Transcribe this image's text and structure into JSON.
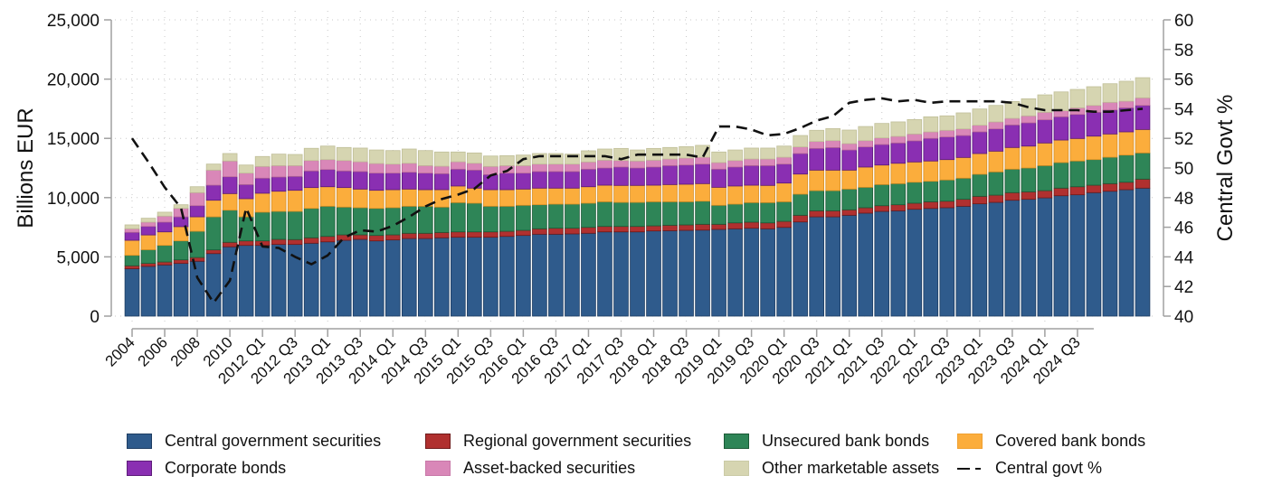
{
  "chart_data": {
    "type": "bar",
    "stacked": true,
    "title": "",
    "xlabel": "",
    "ylabel": "Billions EUR",
    "y2label": "Central Govt %",
    "ylim": [
      0,
      25000
    ],
    "y2lim": [
      40,
      60
    ],
    "yticks": [
      "0",
      "5,000",
      "10,000",
      "15,000",
      "20,000",
      "25,000"
    ],
    "y2ticks": [
      "40",
      "42",
      "44",
      "46",
      "48",
      "50",
      "52",
      "54",
      "56",
      "58",
      "60"
    ],
    "grid": true,
    "legend_position": "bottom",
    "x_tick_labels": [
      "2004",
      "2006",
      "2008",
      "2010",
      "2012 Q1",
      "2012 Q3",
      "2013 Q1",
      "2013 Q3",
      "2014 Q1",
      "2014 Q3",
      "2015 Q1",
      "2015 Q3",
      "2016 Q1",
      "2016 Q3",
      "2017 Q1",
      "2017 Q3",
      "2018 Q1",
      "2018 Q3",
      "2019 Q1",
      "2019 Q3",
      "2020 Q1",
      "2020 Q3",
      "2021 Q1",
      "2021 Q3",
      "2022 Q1",
      "2022 Q3",
      "2023 Q1",
      "2023 Q3",
      "2024 Q1",
      "2024 Q3"
    ],
    "categories": [
      "2004",
      "2005",
      "2006",
      "2007",
      "2008",
      "2009",
      "2010",
      "2011",
      "2012 Q1",
      "2012 Q2",
      "2012 Q3",
      "2012 Q4",
      "2013 Q1",
      "2013 Q2",
      "2013 Q3",
      "2013 Q4",
      "2014 Q1",
      "2014 Q2",
      "2014 Q3",
      "2014 Q4",
      "2015 Q1",
      "2015 Q2",
      "2015 Q3",
      "2015 Q4",
      "2016 Q1",
      "2016 Q2",
      "2016 Q3",
      "2016 Q4",
      "2017 Q1",
      "2017 Q2",
      "2017 Q3",
      "2017 Q4",
      "2018 Q1",
      "2018 Q2",
      "2018 Q3",
      "2018 Q4",
      "2019 Q1",
      "2019 Q2",
      "2019 Q3",
      "2019 Q4",
      "2020 Q1",
      "2020 Q2",
      "2020 Q3",
      "2020 Q4",
      "2021 Q1",
      "2021 Q2",
      "2021 Q3",
      "2021 Q4",
      "2022 Q1",
      "2022 Q2",
      "2022 Q3",
      "2022 Q4",
      "2023 Q1",
      "2023 Q2",
      "2023 Q3",
      "2023 Q4",
      "2024 Q1",
      "2024 Q2",
      "2024 Q3",
      "2024 Q4",
      "2025 Q1",
      "2025 Q2",
      "2025 Q3"
    ],
    "series": [
      {
        "name": "Central government securities",
        "color": "#2f5b8c",
        "values": [
          4000,
          4200,
          4320,
          4450,
          4630,
          5280,
          5850,
          5970,
          5970,
          6050,
          6050,
          6150,
          6270,
          6400,
          6480,
          6350,
          6430,
          6550,
          6550,
          6610,
          6660,
          6660,
          6660,
          6730,
          6810,
          6910,
          6910,
          6940,
          6990,
          7110,
          7110,
          7110,
          7190,
          7210,
          7240,
          7260,
          7320,
          7370,
          7420,
          7370,
          7490,
          7950,
          8380,
          8380,
          8510,
          8690,
          8840,
          8890,
          9020,
          9090,
          9150,
          9270,
          9480,
          9600,
          9780,
          9860,
          9980,
          10160,
          10240,
          10420,
          10540,
          10670,
          10800
        ]
      },
      {
        "name": "Regional government securities",
        "color": "#b0302f",
        "values": [
          250,
          250,
          250,
          300,
          320,
          310,
          380,
          380,
          380,
          430,
          410,
          460,
          460,
          460,
          380,
          460,
          430,
          440,
          440,
          450,
          450,
          450,
          450,
          430,
          430,
          460,
          510,
          480,
          500,
          460,
          460,
          460,
          430,
          460,
          460,
          490,
          430,
          500,
          510,
          500,
          510,
          560,
          510,
          510,
          460,
          460,
          480,
          510,
          510,
          560,
          550,
          590,
          630,
          610,
          640,
          630,
          610,
          640,
          680,
          630,
          640,
          630,
          760
        ]
      },
      {
        "name": "Unsecured bank bonds",
        "color": "#2e8557",
        "values": [
          880,
          1150,
          1400,
          1600,
          2210,
          2790,
          2710,
          2030,
          2420,
          2360,
          2380,
          2480,
          2540,
          2340,
          2290,
          2280,
          2290,
          2280,
          2280,
          2140,
          2470,
          2420,
          2160,
          2110,
          2110,
          2030,
          2030,
          2030,
          2040,
          2080,
          2030,
          2030,
          2030,
          1980,
          1950,
          1950,
          1600,
          1580,
          1650,
          1710,
          1650,
          1780,
          1700,
          1700,
          1750,
          1720,
          1780,
          1780,
          1770,
          1730,
          1790,
          1780,
          1860,
          1960,
          1980,
          2010,
          2110,
          2160,
          2170,
          2160,
          2230,
          2290,
          2210
        ]
      },
      {
        "name": "Covered bank bonds",
        "color": "#fbad3c",
        "values": [
          1270,
          1250,
          1140,
          1200,
          1220,
          1400,
          1400,
          1530,
          1600,
          1700,
          1780,
          1760,
          1650,
          1650,
          1570,
          1530,
          1520,
          1450,
          1400,
          1470,
          1400,
          1270,
          1400,
          1400,
          1370,
          1400,
          1350,
          1350,
          1390,
          1400,
          1430,
          1430,
          1400,
          1450,
          1480,
          1480,
          1520,
          1530,
          1470,
          1450,
          1580,
          1700,
          1730,
          1730,
          1600,
          1710,
          1650,
          1720,
          1710,
          1710,
          1720,
          1750,
          1750,
          1750,
          1830,
          1850,
          1910,
          1900,
          1900,
          1980,
          1960,
          1960,
          1980
        ]
      },
      {
        "name": "Corporate bonds",
        "color": "#8a2fb2",
        "values": [
          670,
          720,
          820,
          830,
          940,
          1270,
          1420,
          1190,
          1270,
          1200,
          1170,
          1400,
          1450,
          1400,
          1480,
          1450,
          1400,
          1420,
          1400,
          1350,
          1420,
          1520,
          1270,
          1400,
          1350,
          1400,
          1400,
          1400,
          1480,
          1450,
          1550,
          1470,
          1530,
          1600,
          1620,
          1650,
          1530,
          1600,
          1650,
          1670,
          1600,
          1730,
          1830,
          1900,
          1700,
          1700,
          1730,
          1710,
          1780,
          1910,
          1910,
          1850,
          1830,
          1880,
          1900,
          1960,
          1960,
          1960,
          2030,
          2010,
          2030,
          2030,
          2030
        ]
      },
      {
        "name": "Asset-backed securities",
        "color": "#d987b8",
        "values": [
          300,
          360,
          510,
          720,
          1100,
          1270,
          1330,
          970,
          990,
          960,
          910,
          880,
          840,
          880,
          830,
          810,
          760,
          760,
          630,
          630,
          630,
          580,
          690,
          630,
          630,
          630,
          630,
          630,
          610,
          660,
          550,
          590,
          580,
          560,
          590,
          580,
          560,
          550,
          560,
          560,
          580,
          560,
          590,
          590,
          540,
          530,
          560,
          560,
          580,
          550,
          560,
          560,
          560,
          590,
          560,
          590,
          630,
          510,
          560,
          580,
          640,
          560,
          640
        ]
      },
      {
        "name": "Other marketable assets",
        "color": "#d6d5b1",
        "values": [
          330,
          330,
          330,
          300,
          500,
          510,
          630,
          680,
          840,
          970,
          940,
          1030,
          1140,
          1100,
          1150,
          1140,
          1140,
          1200,
          1270,
          1200,
          820,
          870,
          880,
          840,
          890,
          890,
          890,
          840,
          940,
          940,
          1020,
          930,
          990,
          970,
          960,
          1000,
          890,
          890,
          920,
          920,
          940,
          960,
          940,
          1010,
          1140,
          1190,
          1220,
          1220,
          1220,
          1270,
          1220,
          1350,
          1370,
          1390,
          1420,
          1440,
          1470,
          1590,
          1550,
          1580,
          1570,
          1680,
          1700
        ]
      }
    ],
    "line_series": {
      "name": "Central govt %",
      "axis": "right",
      "color": "#111111",
      "style": "dashed",
      "values": [
        52.0,
        50.4,
        48.7,
        47.3,
        42.6,
        40.9,
        42.4,
        47.3,
        44.7,
        44.6,
        44.0,
        43.5,
        44.1,
        45.3,
        45.8,
        45.7,
        46.1,
        46.7,
        47.4,
        47.9,
        48.2,
        48.6,
        49.5,
        49.8,
        50.6,
        50.8,
        50.8,
        50.8,
        50.8,
        50.8,
        50.6,
        50.9,
        50.9,
        50.9,
        50.9,
        50.7,
        52.8,
        52.8,
        52.6,
        52.2,
        52.3,
        52.7,
        53.2,
        53.5,
        54.4,
        54.6,
        54.7,
        54.5,
        54.6,
        54.4,
        54.5,
        54.5,
        54.5,
        54.5,
        54.4,
        54.1,
        53.9,
        53.9,
        53.9,
        53.8,
        53.8,
        53.9,
        54.0
      ]
    }
  },
  "legend": {
    "items": [
      {
        "label": "Central government securities",
        "color": "#2f5b8c"
      },
      {
        "label": "Regional government securities",
        "color": "#b0302f"
      },
      {
        "label": "Unsecured bank bonds",
        "color": "#2e8557"
      },
      {
        "label": "Covered bank bonds",
        "color": "#fbad3c"
      },
      {
        "label": "Corporate bonds",
        "color": "#8a2fb2"
      },
      {
        "label": "Asset-backed securities",
        "color": "#d987b8"
      },
      {
        "label": "Other marketable assets",
        "color": "#d6d5b1"
      },
      {
        "label": "Central govt %",
        "style": "dashed"
      }
    ]
  }
}
